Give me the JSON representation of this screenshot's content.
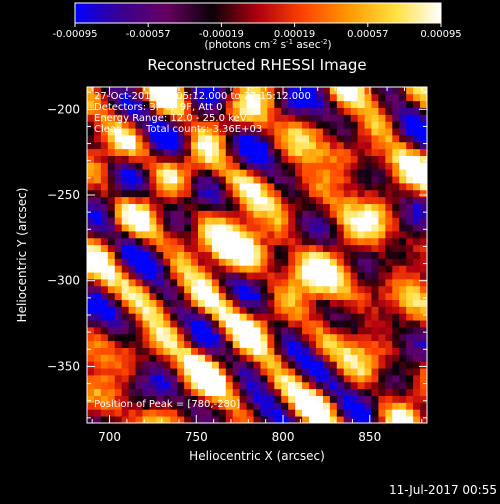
{
  "colors": {
    "background": "#000000",
    "foreground": "#ffffff",
    "colormap_stops": [
      "#0000ff",
      "#3a0090",
      "#650060",
      "#0a0008",
      "#b00010",
      "#ff4400",
      "#ff9a00",
      "#ffe040",
      "#ffffff"
    ]
  },
  "colorbar": {
    "tick_labels": [
      "-0.00095",
      "-0.00057",
      "-0.00019",
      "0.00019",
      "0.00057",
      "0.00095"
    ],
    "units_prefix": "(photons cm",
    "units_sup1": "-2",
    "units_mid": " s",
    "units_sup2": "-1",
    "units_suffix": " asec",
    "units_sup3": "-2",
    "units_end": ")"
  },
  "chart_data": {
    "type": "heatmap",
    "title": "Reconstructed RHESSI Image",
    "xlabel": "Heliocentric X (arcsec)",
    "ylabel": "Heliocentric Y (arcsec)",
    "xlim": [
      687,
      883
    ],
    "ylim": [
      -383,
      -187
    ],
    "x_ticks": [
      700,
      750,
      800,
      850
    ],
    "y_ticks": [
      -200,
      -250,
      -300,
      -350
    ],
    "x_tick_labels": [
      "700",
      "750",
      "800",
      "850"
    ],
    "y_tick_labels": [
      "−200",
      "−250",
      "−300",
      "−350"
    ],
    "value_range": [
      -0.00095,
      0.00095
    ],
    "peak": [
      780,
      -280
    ],
    "sources": [
      {
        "x": 772,
        "y": -277,
        "peak": 0.00095
      },
      {
        "x": 825,
        "y": -300,
        "peak": 0.00062
      },
      {
        "x": 845,
        "y": -240,
        "peak": 0.00048
      },
      {
        "x": 760,
        "y": -340,
        "peak": 0.00045
      }
    ],
    "annotations": {
      "time_range": "27-Oct-2014 22:05:12.000 to 22:15:12.000",
      "detectors": "Detectors: 3F 6F 9F, Att 0",
      "energy_range": "Energy Range: 12.0 - 25.0 keV",
      "algorithm": "Clean",
      "total_counts": "Total counts: 3.36E+03",
      "peak_position": "Position of Peak = [780,-280]"
    }
  },
  "footer_timestamp": "11-Jul-2017 00:55"
}
